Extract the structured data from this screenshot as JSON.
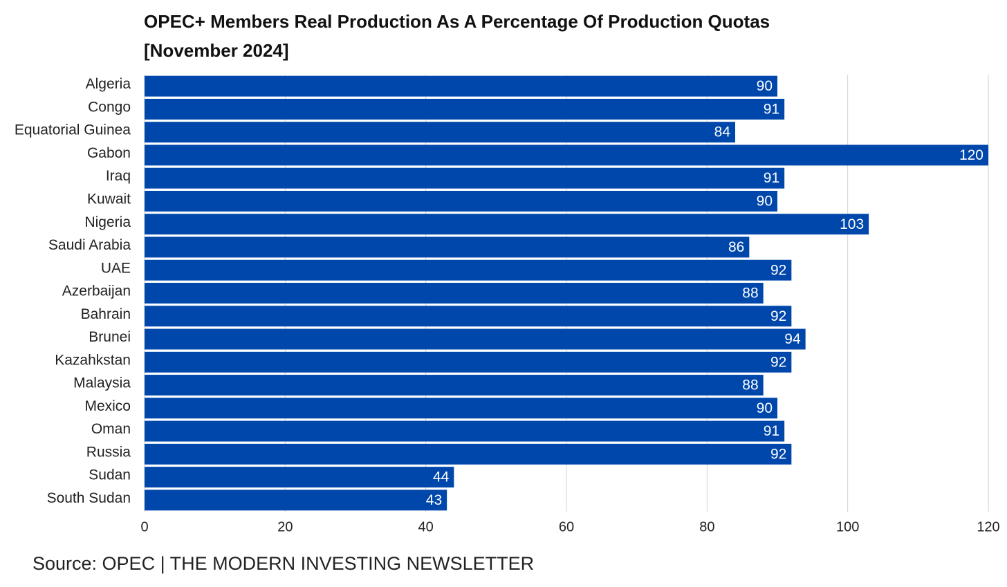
{
  "chart_data": {
    "type": "bar",
    "orientation": "horizontal",
    "title": "OPEC+ Members Real Production As A Percentage Of Production Quotas [November 2024]",
    "source": "Source: OPEC | THE MODERN INVESTING NEWSLETTER",
    "categories": [
      "Algeria",
      "Congo",
      "Equatorial Guinea",
      "Gabon",
      "Iraq",
      "Kuwait",
      "Nigeria",
      "Saudi Arabia",
      "UAE",
      "Azerbaijan",
      "Bahrain",
      "Brunei",
      "Kazahkstan",
      "Malaysia",
      "Mexico",
      "Oman",
      "Russia",
      "Sudan",
      "South Sudan"
    ],
    "values": [
      90,
      91,
      84,
      120,
      91,
      90,
      103,
      86,
      92,
      88,
      92,
      94,
      92,
      88,
      90,
      91,
      92,
      44,
      43
    ],
    "color": "#0047ab",
    "xlim": [
      0,
      120
    ],
    "xticks": [
      0,
      20,
      40,
      60,
      80,
      100,
      120
    ],
    "grid": true
  }
}
